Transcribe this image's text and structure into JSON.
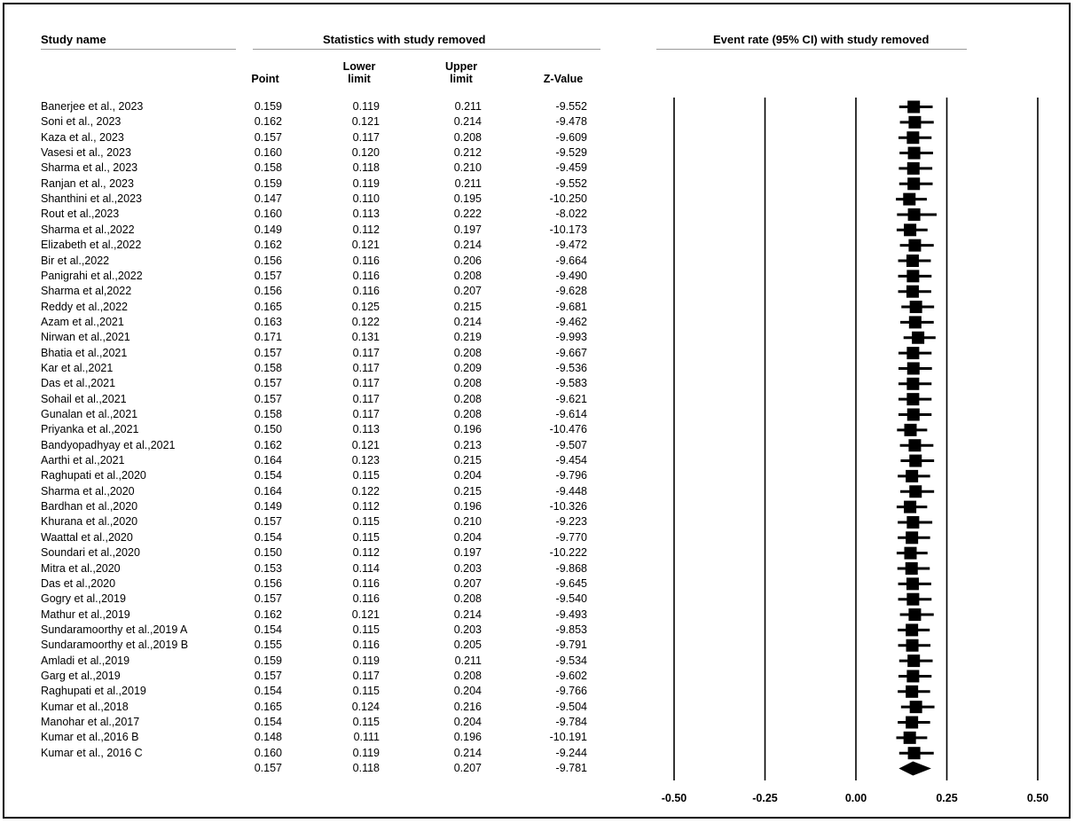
{
  "headers": {
    "study_name": "Study name",
    "statistics": "Statistics with study removed",
    "event_rate": "Event rate (95% CI) with study removed",
    "point": "Point",
    "lower": "Lower\nlimit",
    "upper": "Upper\nlimit",
    "z": "Z-Value"
  },
  "rows": [
    {
      "name": "Banerjee et al., 2023",
      "point": "0.159",
      "lower": "0.119",
      "upper": "0.211",
      "z": "-9.552"
    },
    {
      "name": "Soni et al., 2023",
      "point": "0.162",
      "lower": "0.121",
      "upper": "0.214",
      "z": "-9.478"
    },
    {
      "name": "Kaza et al., 2023",
      "point": "0.157",
      "lower": "0.117",
      "upper": "0.208",
      "z": "-9.609"
    },
    {
      "name": "Vasesi et al., 2023",
      "point": "0.160",
      "lower": "0.120",
      "upper": "0.212",
      "z": "-9.529"
    },
    {
      "name": "Sharma et al., 2023",
      "point": "0.158",
      "lower": "0.118",
      "upper": "0.210",
      "z": "-9.459"
    },
    {
      "name": "Ranjan et al., 2023",
      "point": "0.159",
      "lower": "0.119",
      "upper": "0.211",
      "z": "-9.552"
    },
    {
      "name": "Shanthini et al.,2023",
      "point": "0.147",
      "lower": "0.110",
      "upper": "0.195",
      "z": "-10.250"
    },
    {
      "name": "Rout et al.,2023",
      "point": "0.160",
      "lower": "0.113",
      "upper": "0.222",
      "z": "-8.022"
    },
    {
      "name": "Sharma et al.,2022",
      "point": "0.149",
      "lower": "0.112",
      "upper": "0.197",
      "z": "-10.173"
    },
    {
      "name": "Elizabeth et al.,2022",
      "point": "0.162",
      "lower": "0.121",
      "upper": "0.214",
      "z": "-9.472"
    },
    {
      "name": "Bir et al.,2022",
      "point": "0.156",
      "lower": "0.116",
      "upper": "0.206",
      "z": "-9.664"
    },
    {
      "name": "Panigrahi et al.,2022",
      "point": "0.157",
      "lower": "0.116",
      "upper": "0.208",
      "z": "-9.490"
    },
    {
      "name": "Sharma et al,2022",
      "point": "0.156",
      "lower": "0.116",
      "upper": "0.207",
      "z": "-9.628"
    },
    {
      "name": "Reddy et al.,2022",
      "point": "0.165",
      "lower": "0.125",
      "upper": "0.215",
      "z": "-9.681"
    },
    {
      "name": "Azam et al.,2021",
      "point": "0.163",
      "lower": "0.122",
      "upper": "0.214",
      "z": "-9.462"
    },
    {
      "name": "Nirwan et al.,2021",
      "point": "0.171",
      "lower": "0.131",
      "upper": "0.219",
      "z": "-9.993"
    },
    {
      "name": "Bhatia et al.,2021",
      "point": "0.157",
      "lower": "0.117",
      "upper": "0.208",
      "z": "-9.667"
    },
    {
      "name": "Kar et al.,2021",
      "point": "0.158",
      "lower": "0.117",
      "upper": "0.209",
      "z": "-9.536"
    },
    {
      "name": "Das et al.,2021",
      "point": "0.157",
      "lower": "0.117",
      "upper": "0.208",
      "z": "-9.583"
    },
    {
      "name": "Sohail et al.,2021",
      "point": "0.157",
      "lower": "0.117",
      "upper": "0.208",
      "z": "-9.621"
    },
    {
      "name": "Gunalan et al.,2021",
      "point": "0.158",
      "lower": "0.117",
      "upper": "0.208",
      "z": "-9.614"
    },
    {
      "name": "Priyanka et al.,2021",
      "point": "0.150",
      "lower": "0.113",
      "upper": "0.196",
      "z": "-10.476"
    },
    {
      "name": "Bandyopadhyay et al.,2021",
      "point": "0.162",
      "lower": "0.121",
      "upper": "0.213",
      "z": "-9.507"
    },
    {
      "name": "Aarthi et al.,2021",
      "point": "0.164",
      "lower": "0.123",
      "upper": "0.215",
      "z": "-9.454"
    },
    {
      "name": "Raghupati et al.,2020",
      "point": "0.154",
      "lower": "0.115",
      "upper": "0.204",
      "z": "-9.796"
    },
    {
      "name": "Sharma et al.,2020",
      "point": "0.164",
      "lower": "0.122",
      "upper": "0.215",
      "z": "-9.448"
    },
    {
      "name": "Bardhan et al.,2020",
      "point": "0.149",
      "lower": "0.112",
      "upper": "0.196",
      "z": "-10.326"
    },
    {
      "name": "Khurana et al.,2020",
      "point": "0.157",
      "lower": "0.115",
      "upper": "0.210",
      "z": "-9.223"
    },
    {
      "name": "Waattal et al.,2020",
      "point": "0.154",
      "lower": "0.115",
      "upper": "0.204",
      "z": "-9.770"
    },
    {
      "name": "Soundari et al.,2020",
      "point": "0.150",
      "lower": "0.112",
      "upper": "0.197",
      "z": "-10.222"
    },
    {
      "name": "Mitra et al.,2020",
      "point": "0.153",
      "lower": "0.114",
      "upper": "0.203",
      "z": "-9.868"
    },
    {
      "name": "Das et al.,2020",
      "point": "0.156",
      "lower": "0.116",
      "upper": "0.207",
      "z": "-9.645"
    },
    {
      "name": "Gogry et al.,2019",
      "point": "0.157",
      "lower": "0.116",
      "upper": "0.208",
      "z": "-9.540"
    },
    {
      "name": "Mathur et al.,2019",
      "point": "0.162",
      "lower": "0.121",
      "upper": "0.214",
      "z": "-9.493"
    },
    {
      "name": "Sundaramoorthy et al.,2019 A",
      "point": "0.154",
      "lower": "0.115",
      "upper": "0.203",
      "z": "-9.853"
    },
    {
      "name": "Sundaramoorthy et al.,2019 B",
      "point": "0.155",
      "lower": "0.116",
      "upper": "0.205",
      "z": "-9.791"
    },
    {
      "name": "Amladi et al.,2019",
      "point": "0.159",
      "lower": "0.119",
      "upper": "0.211",
      "z": "-9.534"
    },
    {
      "name": "Garg et al.,2019",
      "point": "0.157",
      "lower": "0.117",
      "upper": "0.208",
      "z": "-9.602"
    },
    {
      "name": "Raghupati et al.,2019",
      "point": "0.154",
      "lower": "0.115",
      "upper": "0.204",
      "z": "-9.766"
    },
    {
      "name": "Kumar et al.,2018",
      "point": "0.165",
      "lower": "0.124",
      "upper": "0.216",
      "z": "-9.504"
    },
    {
      "name": "Manohar et al.,2017",
      "point": "0.154",
      "lower": "0.115",
      "upper": "0.204",
      "z": "-9.784"
    },
    {
      "name": "Kumar et al.,2016 B",
      "point": "0.148",
      "lower": "0.111",
      "upper": "0.196",
      "z": "-10.191"
    },
    {
      "name": "Kumar et al., 2016 C",
      "point": "0.160",
      "lower": "0.119",
      "upper": "0.214",
      "z": "-9.244"
    },
    {
      "name": "",
      "point": "0.157",
      "lower": "0.118",
      "upper": "0.207",
      "z": "-9.781"
    }
  ],
  "chart_data": {
    "type": "forest",
    "title": "Event rate (95% CI) with study removed",
    "xlim": [
      -0.5,
      0.5
    ],
    "xticks": [
      "-0.50",
      "-0.25",
      "0.00",
      "0.25",
      "0.50"
    ],
    "xtick_values": [
      -0.5,
      -0.25,
      0.0,
      0.25,
      0.5
    ],
    "vertical_lines_at": [
      -0.5,
      -0.25,
      0.0,
      0.25,
      0.5
    ],
    "series": [
      {
        "point": 0.159,
        "lower": 0.119,
        "upper": 0.211
      },
      {
        "point": 0.162,
        "lower": 0.121,
        "upper": 0.214
      },
      {
        "point": 0.157,
        "lower": 0.117,
        "upper": 0.208
      },
      {
        "point": 0.16,
        "lower": 0.12,
        "upper": 0.212
      },
      {
        "point": 0.158,
        "lower": 0.118,
        "upper": 0.21
      },
      {
        "point": 0.159,
        "lower": 0.119,
        "upper": 0.211
      },
      {
        "point": 0.147,
        "lower": 0.11,
        "upper": 0.195
      },
      {
        "point": 0.16,
        "lower": 0.113,
        "upper": 0.222
      },
      {
        "point": 0.149,
        "lower": 0.112,
        "upper": 0.197
      },
      {
        "point": 0.162,
        "lower": 0.121,
        "upper": 0.214
      },
      {
        "point": 0.156,
        "lower": 0.116,
        "upper": 0.206
      },
      {
        "point": 0.157,
        "lower": 0.116,
        "upper": 0.208
      },
      {
        "point": 0.156,
        "lower": 0.116,
        "upper": 0.207
      },
      {
        "point": 0.165,
        "lower": 0.125,
        "upper": 0.215
      },
      {
        "point": 0.163,
        "lower": 0.122,
        "upper": 0.214
      },
      {
        "point": 0.171,
        "lower": 0.131,
        "upper": 0.219
      },
      {
        "point": 0.157,
        "lower": 0.117,
        "upper": 0.208
      },
      {
        "point": 0.158,
        "lower": 0.117,
        "upper": 0.209
      },
      {
        "point": 0.157,
        "lower": 0.117,
        "upper": 0.208
      },
      {
        "point": 0.157,
        "lower": 0.117,
        "upper": 0.208
      },
      {
        "point": 0.158,
        "lower": 0.117,
        "upper": 0.208
      },
      {
        "point": 0.15,
        "lower": 0.113,
        "upper": 0.196
      },
      {
        "point": 0.162,
        "lower": 0.121,
        "upper": 0.213
      },
      {
        "point": 0.164,
        "lower": 0.123,
        "upper": 0.215
      },
      {
        "point": 0.154,
        "lower": 0.115,
        "upper": 0.204
      },
      {
        "point": 0.164,
        "lower": 0.122,
        "upper": 0.215
      },
      {
        "point": 0.149,
        "lower": 0.112,
        "upper": 0.196
      },
      {
        "point": 0.157,
        "lower": 0.115,
        "upper": 0.21
      },
      {
        "point": 0.154,
        "lower": 0.115,
        "upper": 0.204
      },
      {
        "point": 0.15,
        "lower": 0.112,
        "upper": 0.197
      },
      {
        "point": 0.153,
        "lower": 0.114,
        "upper": 0.203
      },
      {
        "point": 0.156,
        "lower": 0.116,
        "upper": 0.207
      },
      {
        "point": 0.157,
        "lower": 0.116,
        "upper": 0.208
      },
      {
        "point": 0.162,
        "lower": 0.121,
        "upper": 0.214
      },
      {
        "point": 0.154,
        "lower": 0.115,
        "upper": 0.203
      },
      {
        "point": 0.155,
        "lower": 0.116,
        "upper": 0.205
      },
      {
        "point": 0.159,
        "lower": 0.119,
        "upper": 0.211
      },
      {
        "point": 0.157,
        "lower": 0.117,
        "upper": 0.208
      },
      {
        "point": 0.154,
        "lower": 0.115,
        "upper": 0.204
      },
      {
        "point": 0.165,
        "lower": 0.124,
        "upper": 0.216
      },
      {
        "point": 0.154,
        "lower": 0.115,
        "upper": 0.204
      },
      {
        "point": 0.148,
        "lower": 0.111,
        "upper": 0.196
      },
      {
        "point": 0.16,
        "lower": 0.119,
        "upper": 0.214
      }
    ],
    "summary": {
      "point": 0.157,
      "lower": 0.118,
      "upper": 0.207
    }
  }
}
